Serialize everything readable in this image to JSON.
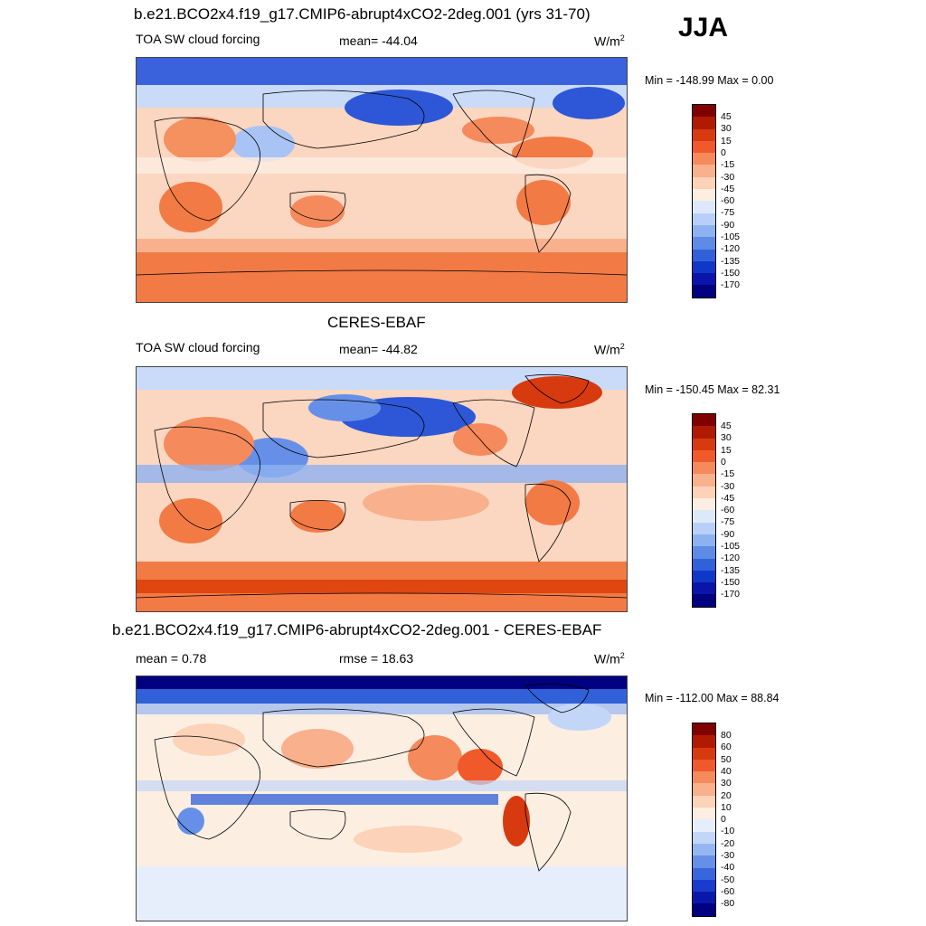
{
  "season": "JJA",
  "panels": [
    {
      "id": "model",
      "title": "b.e21.BCO2x4.f19_g17.CMIP6-abrupt4xCO2-2deg.001 (yrs 31-70)",
      "left_label": "TOA SW cloud forcing",
      "center_label": "mean= -44.04",
      "units_label": "W/m",
      "units_sup": "2",
      "minmax": "Min = -148.99 Max =   0.00",
      "colorbar_labels": [
        "45",
        "30",
        "15",
        "0",
        "-15",
        "-30",
        "-45",
        "-60",
        "-75",
        "-90",
        "-105",
        "-120",
        "-135",
        "-150",
        "-170"
      ],
      "colorbar_colors": [
        "#800000",
        "#b01a00",
        "#d83a0f",
        "#f05a2a",
        "#f58a5c",
        "#f9b08c",
        "#fcd2b8",
        "#fdeee2",
        "#dde9fb",
        "#b8d0f7",
        "#8eb2f0",
        "#5d8be6",
        "#3161d9",
        "#1038c8",
        "#0a14a8",
        "#000080"
      ]
    },
    {
      "id": "obs",
      "title": "CERES-EBAF",
      "left_label": "TOA SW cloud forcing",
      "center_label": "mean= -44.82",
      "units_label": "W/m",
      "units_sup": "2",
      "minmax": "Min = -150.45 Max =  82.31",
      "colorbar_labels": [
        "45",
        "30",
        "15",
        "0",
        "-15",
        "-30",
        "-45",
        "-60",
        "-75",
        "-90",
        "-105",
        "-120",
        "-135",
        "-150",
        "-170"
      ],
      "colorbar_colors": [
        "#800000",
        "#b01a00",
        "#d83a0f",
        "#f05a2a",
        "#f58a5c",
        "#f9b08c",
        "#fcd2b8",
        "#fdeee2",
        "#dde9fb",
        "#b8d0f7",
        "#8eb2f0",
        "#5d8be6",
        "#3161d9",
        "#1038c8",
        "#0a14a8",
        "#000080"
      ]
    },
    {
      "id": "diff",
      "title": "b.e21.BCO2x4.f19_g17.CMIP6-abrupt4xCO2-2deg.001 - CERES-EBAF",
      "left_label": "mean =   0.78",
      "center_label": "rmse =  18.63",
      "units_label": "W/m",
      "units_sup": "2",
      "minmax": "Min = -112.00 Max =  88.84",
      "colorbar_labels": [
        "80",
        "60",
        "50",
        "40",
        "30",
        "20",
        "10",
        "0",
        "-10",
        "-20",
        "-30",
        "-40",
        "-50",
        "-60",
        "-80"
      ],
      "colorbar_colors": [
        "#800000",
        "#b01a00",
        "#d83a0f",
        "#f05a2a",
        "#f58a5c",
        "#f9b08c",
        "#fcd2b8",
        "#fdeee2",
        "#e6eefc",
        "#c2d6f8",
        "#95b7f1",
        "#6690e8",
        "#3a66db",
        "#1a3ccc",
        "#0a18aa",
        "#000080"
      ]
    }
  ]
}
